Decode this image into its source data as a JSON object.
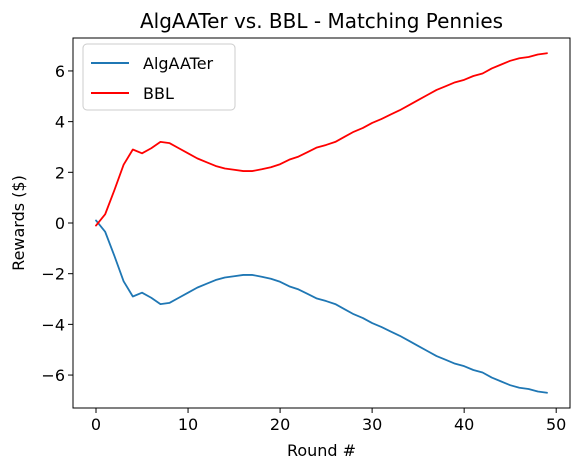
{
  "chart_data": {
    "type": "line",
    "title": "AlgAATer vs. BBL - Matching Pennies",
    "xlabel": "Round #",
    "ylabel": "Rewards ($)",
    "xlim": [
      -2.5,
      51.5
    ],
    "ylim": [
      -7.3,
      7.3
    ],
    "xticks": [
      0,
      10,
      20,
      30,
      40,
      50
    ],
    "yticks": [
      -6,
      -4,
      -2,
      0,
      2,
      4,
      6
    ],
    "xtick_labels": [
      "0",
      "10",
      "20",
      "30",
      "40",
      "50"
    ],
    "ytick_labels": [
      "−6",
      "−4",
      "−2",
      "0",
      "2",
      "4",
      "6"
    ],
    "grid": false,
    "legend_position": "top-left",
    "x": [
      0,
      1,
      2,
      3,
      4,
      5,
      6,
      7,
      8,
      9,
      10,
      11,
      12,
      13,
      14,
      15,
      16,
      17,
      18,
      19,
      20,
      21,
      22,
      23,
      24,
      25,
      26,
      27,
      28,
      29,
      30,
      31,
      32,
      33,
      34,
      35,
      36,
      37,
      38,
      39,
      40,
      41,
      42,
      43,
      44,
      45,
      46,
      47,
      48,
      49
    ],
    "series": [
      {
        "name": "AlgAATer",
        "color": "#1f77b4",
        "values": [
          0.1,
          -0.35,
          -1.3,
          -2.3,
          -2.9,
          -2.75,
          -2.95,
          -3.2,
          -3.15,
          -2.95,
          -2.75,
          -2.55,
          -2.4,
          -2.25,
          -2.15,
          -2.1,
          -2.05,
          -2.05,
          -2.12,
          -2.2,
          -2.32,
          -2.5,
          -2.62,
          -2.8,
          -2.98,
          -3.08,
          -3.2,
          -3.4,
          -3.6,
          -3.75,
          -3.95,
          -4.1,
          -4.28,
          -4.45,
          -4.65,
          -4.85,
          -5.05,
          -5.25,
          -5.4,
          -5.55,
          -5.65,
          -5.8,
          -5.9,
          -6.1,
          -6.25,
          -6.4,
          -6.5,
          -6.55,
          -6.65,
          -6.7
        ]
      },
      {
        "name": "BBL",
        "color": "#ff0000",
        "values": [
          -0.1,
          0.35,
          1.3,
          2.3,
          2.9,
          2.75,
          2.95,
          3.2,
          3.15,
          2.95,
          2.75,
          2.55,
          2.4,
          2.25,
          2.15,
          2.1,
          2.05,
          2.05,
          2.12,
          2.2,
          2.32,
          2.5,
          2.62,
          2.8,
          2.98,
          3.08,
          3.2,
          3.4,
          3.6,
          3.75,
          3.95,
          4.1,
          4.28,
          4.45,
          4.65,
          4.85,
          5.05,
          5.25,
          5.4,
          5.55,
          5.65,
          5.8,
          5.9,
          6.1,
          6.25,
          6.4,
          6.5,
          6.55,
          6.65,
          6.7
        ]
      }
    ]
  }
}
